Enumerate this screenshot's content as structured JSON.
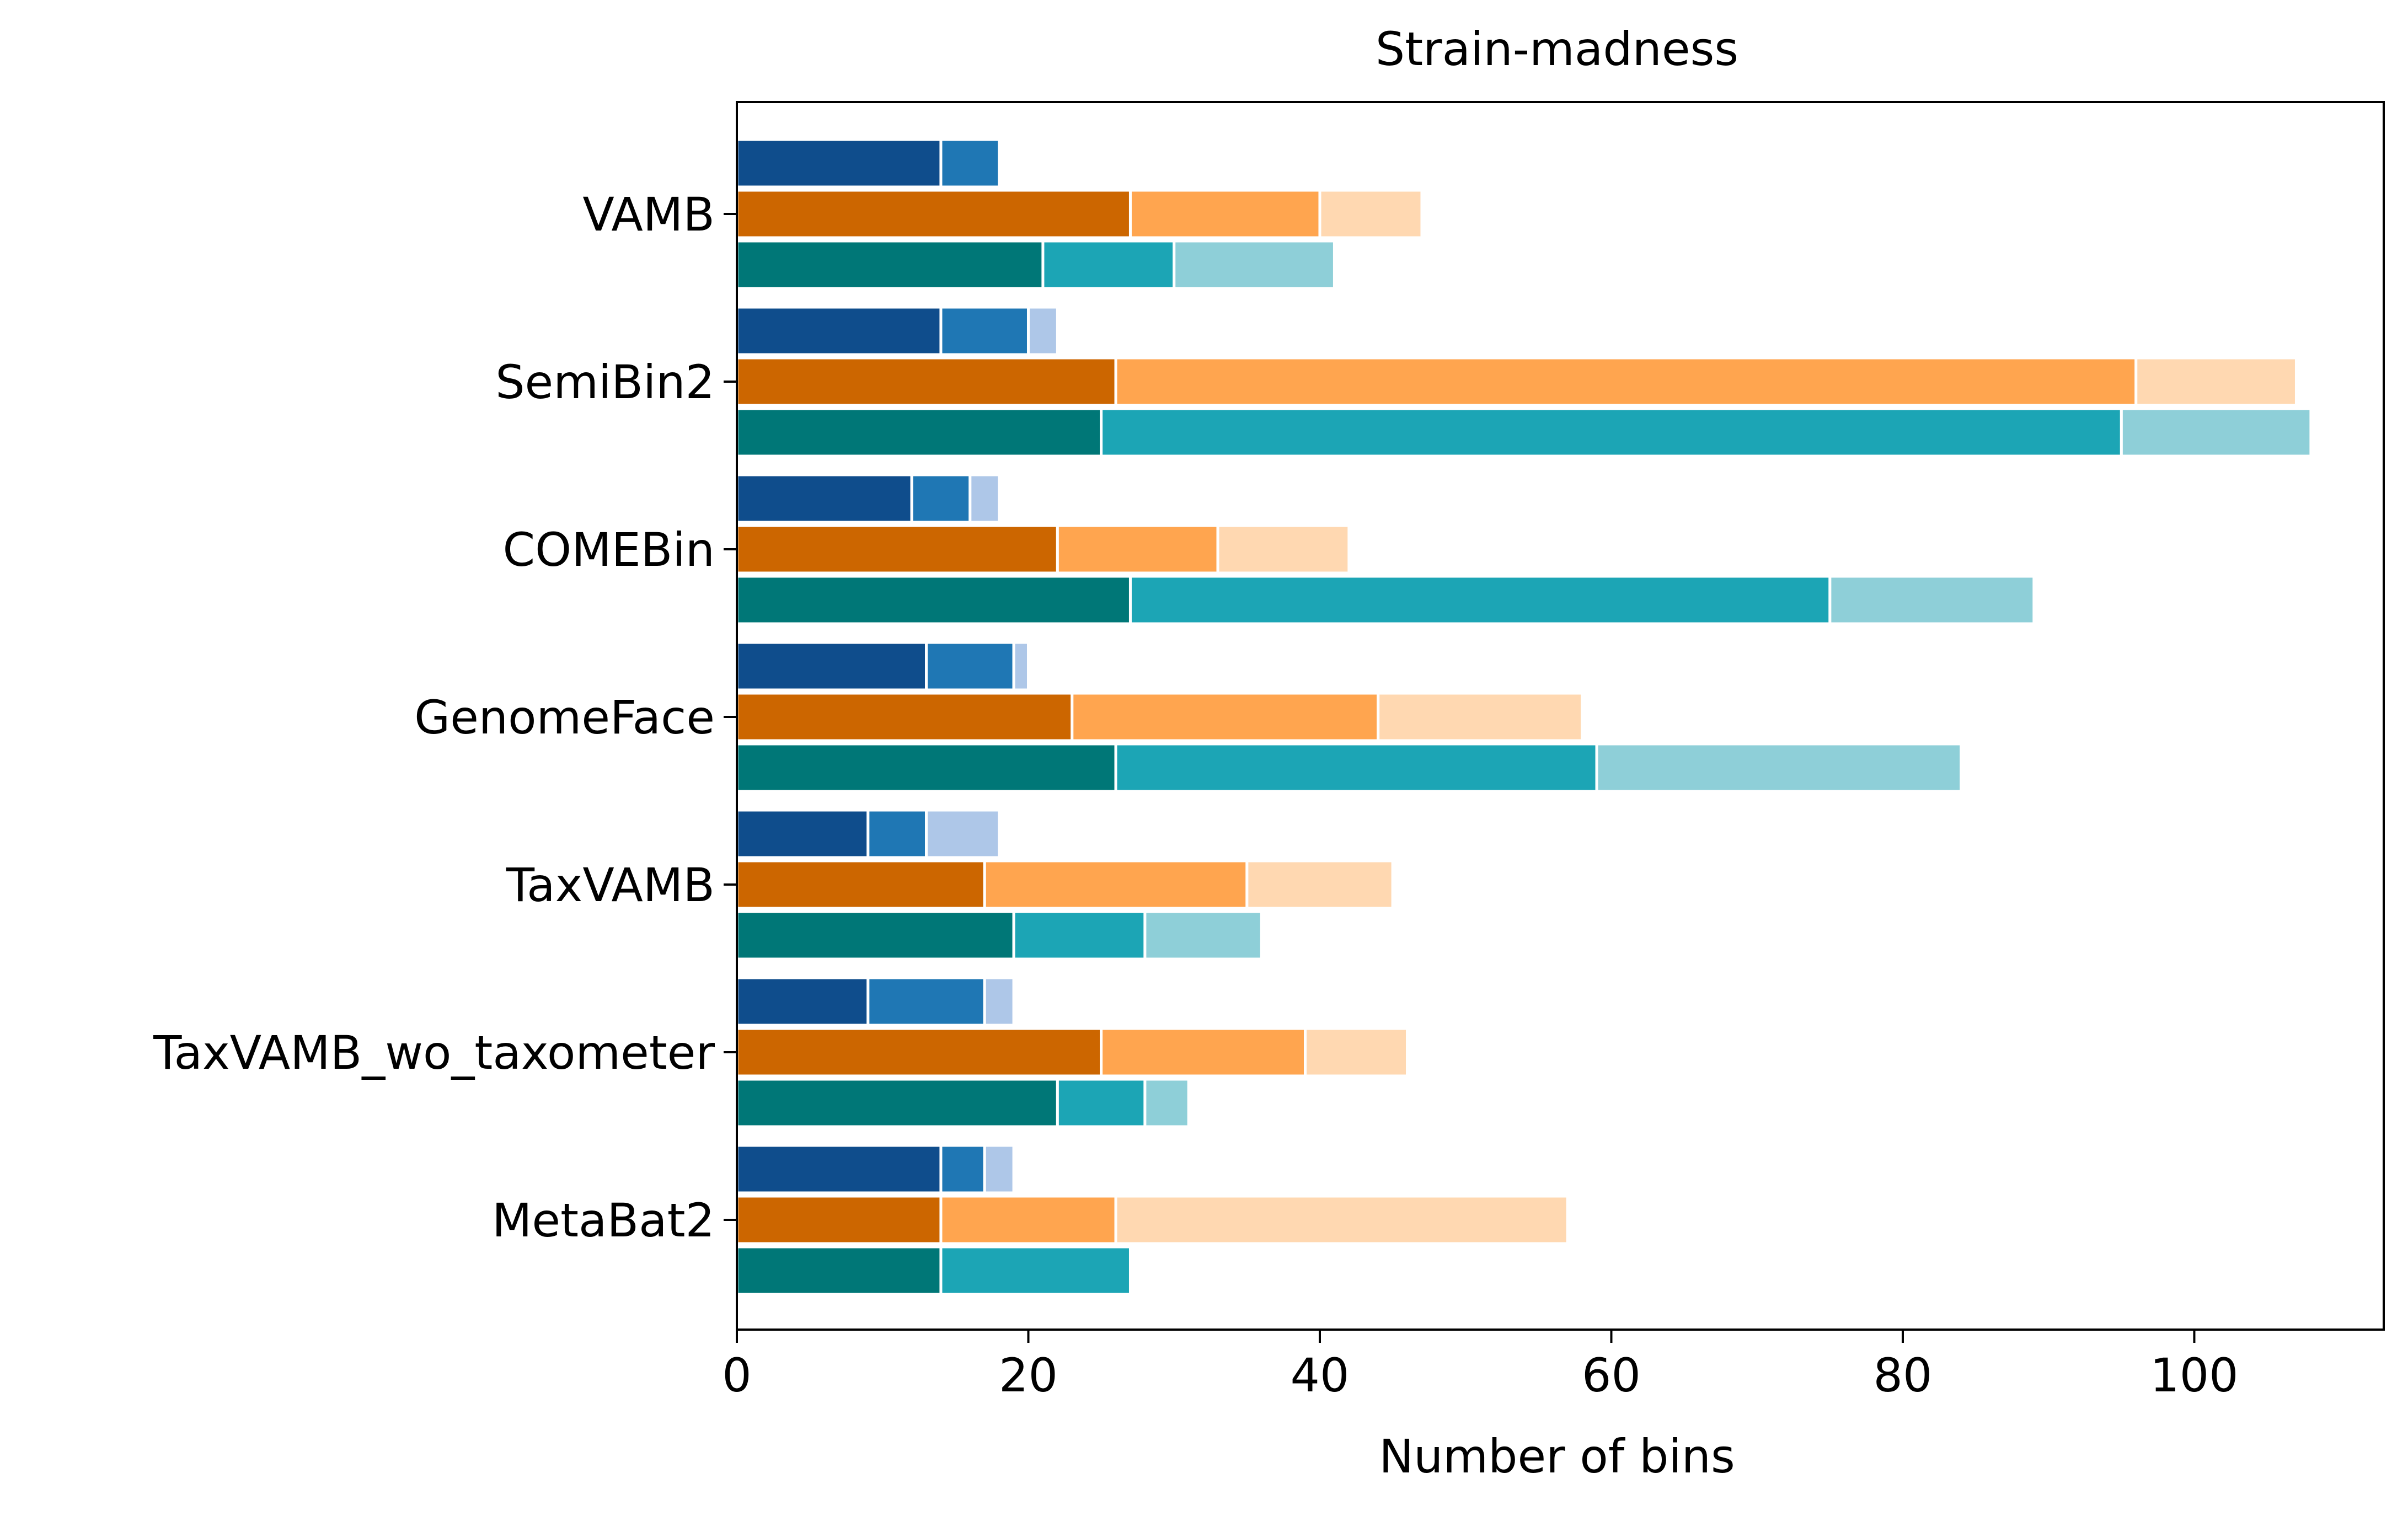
{
  "chart_data": {
    "type": "bar",
    "orientation": "horizontal",
    "stacked": true,
    "title": "Strain-madness",
    "xlabel": "Number of bins",
    "ylabel": "",
    "xlim": [
      0,
      113
    ],
    "xticks": [
      0,
      20,
      40,
      60,
      80,
      100
    ],
    "grid": false,
    "legend": "none",
    "categories": [
      "VAMB",
      "SemiBin2",
      "COMEBin",
      "GenomeFace",
      "TaxVAMB",
      "TaxVAMB_wo_taxometer",
      "MetaBat2"
    ],
    "bar_groups": [
      {
        "segment_colors": [
          "#0f4d8c",
          "#1f77b4",
          "#aec7e8"
        ],
        "segments": [
          [
            14,
            4,
            0
          ],
          [
            14,
            6,
            2
          ],
          [
            12,
            4,
            2
          ],
          [
            13,
            6,
            1
          ],
          [
            9,
            4,
            5
          ],
          [
            9,
            8,
            2
          ],
          [
            14,
            3,
            2
          ]
        ]
      },
      {
        "segment_colors": [
          "#cc6600",
          "#ffa54f",
          "#ffd8b1"
        ],
        "segments": [
          [
            27,
            13,
            7
          ],
          [
            26,
            70,
            11
          ],
          [
            22,
            11,
            9
          ],
          [
            23,
            21,
            14
          ],
          [
            17,
            18,
            10
          ],
          [
            25,
            14,
            7
          ],
          [
            14,
            12,
            31
          ]
        ]
      },
      {
        "segment_colors": [
          "#007777",
          "#1ca5b5",
          "#8ecfd8"
        ],
        "segments": [
          [
            21,
            9,
            11
          ],
          [
            25,
            70,
            13
          ],
          [
            27,
            48,
            14
          ],
          [
            26,
            33,
            25
          ],
          [
            19,
            9,
            8
          ],
          [
            22,
            6,
            3
          ],
          [
            14,
            13,
            0
          ]
        ]
      }
    ]
  }
}
